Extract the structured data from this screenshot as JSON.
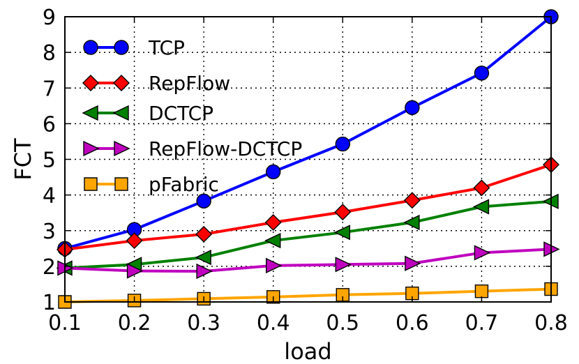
{
  "chart_data": {
    "type": "line",
    "title": "",
    "xlabel": "load",
    "ylabel": "FCT",
    "xlim": [
      0.1,
      0.8
    ],
    "ylim": [
      1,
      9
    ],
    "grid": true,
    "legend_position": "top-left",
    "x": [
      0.1,
      0.2,
      0.3,
      0.4,
      0.5,
      0.6,
      0.7,
      0.8
    ],
    "x_tick_labels": [
      "0.1",
      "0.2",
      "0.3",
      "0.4",
      "0.5",
      "0.6",
      "0.7",
      "0.8"
    ],
    "y_tick_labels": [
      "1",
      "2",
      "3",
      "4",
      "5",
      "6",
      "7",
      "8",
      "9"
    ],
    "series": [
      {
        "name": "TCP",
        "color": "#0000ff",
        "marker": "circle",
        "values": [
          2.5,
          3.03,
          3.83,
          4.65,
          5.43,
          6.45,
          7.42,
          9.0
        ]
      },
      {
        "name": "RepFlow",
        "color": "#ff0000",
        "marker": "diamond",
        "values": [
          2.47,
          2.72,
          2.9,
          3.23,
          3.52,
          3.85,
          4.2,
          4.85
        ]
      },
      {
        "name": "DCTCP",
        "color": "#008000",
        "marker": "triangle-left",
        "values": [
          1.95,
          2.05,
          2.25,
          2.72,
          2.95,
          3.23,
          3.67,
          3.82
        ]
      },
      {
        "name": "RepFlow-DCTCP",
        "color": "#bf00bf",
        "marker": "triangle-right",
        "values": [
          1.95,
          1.87,
          1.86,
          2.02,
          2.05,
          2.08,
          2.38,
          2.48
        ]
      },
      {
        "name": "pFabric",
        "color": "#ffa500",
        "marker": "square",
        "values": [
          1.0,
          1.04,
          1.09,
          1.14,
          1.2,
          1.24,
          1.3,
          1.36
        ]
      }
    ]
  }
}
